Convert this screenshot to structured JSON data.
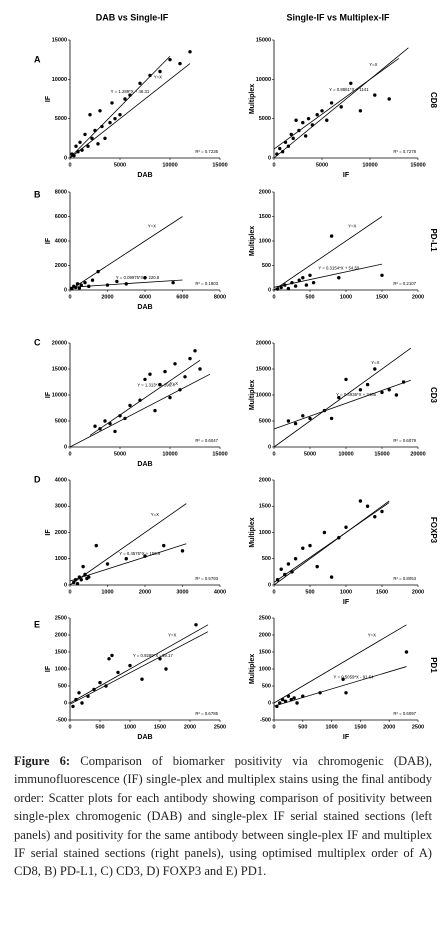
{
  "figure": {
    "columns": [
      "DAB vs Single-IF",
      "Single-IF vs Multiplex-IF"
    ],
    "rows": [
      {
        "letter": "A",
        "marker": "CD8"
      },
      {
        "letter": "B",
        "marker": "PD-L1"
      },
      {
        "letter": "C",
        "marker": "CD3"
      },
      {
        "letter": "D",
        "marker": "FOXP3"
      },
      {
        "letter": "E",
        "marker": "PD1"
      }
    ]
  },
  "caption": {
    "label": "Figure 6:",
    "text": "Comparison of biomarker positivity via chromogenic (DAB), immunofluorescence (IF) single-plex and multiplex stains using the final antibody order: Scatter plots for each antibody showing comparison of positivity between single-plex chromogenic (DAB) and single-plex IF serial stained sections (left panels) and positivity for the same antibody between single-plex IF and multiplex IF serial stained sections (right panels), using optimised multiplex order of A) CD8, B) PD-L1, C) CD3, D) FOXP3 and E) PD1."
  },
  "chart_data": [
    {
      "type": "scatter",
      "xlabel": "DAB",
      "ylabel": "IF",
      "color": "#000000",
      "xlim": [
        0,
        15000
      ],
      "ylim": [
        0,
        15000
      ],
      "xticks": [
        0,
        5000,
        10000,
        15000
      ],
      "yticks": [
        0,
        5000,
        10000,
        15000
      ],
      "x": [
        200,
        400,
        600,
        800,
        1000,
        1200,
        1500,
        1800,
        2000,
        2200,
        2500,
        2800,
        3000,
        3200,
        3500,
        4000,
        4200,
        4500,
        5000,
        5500,
        6000,
        7000,
        8000,
        9000,
        10000,
        11000,
        12000
      ],
      "values": [
        500,
        300,
        1500,
        800,
        2000,
        1000,
        3000,
        1500,
        5500,
        2500,
        3500,
        1800,
        6000,
        4000,
        2500,
        4500,
        7000,
        5000,
        5500,
        7500,
        8000,
        9500,
        10500,
        11000,
        12500,
        12000,
        13500
      ],
      "lines": [
        {
          "label": "Y=X",
          "x": [
            0,
            12000
          ],
          "values": [
            0,
            12000
          ]
        },
        {
          "label": "Y = 1.289*X + 46.31",
          "x": [
            0,
            10000
          ],
          "values": [
            46.31,
            12936
          ]
        }
      ],
      "r2": "R² = 0.7235"
    },
    {
      "type": "scatter",
      "xlabel": "IF",
      "ylabel": "Multiplex",
      "color": "#000000",
      "xlim": [
        0,
        15000
      ],
      "ylim": [
        0,
        15000
      ],
      "xticks": [
        0,
        5000,
        10000,
        15000
      ],
      "yticks": [
        0,
        5000,
        10000,
        15000
      ],
      "x": [
        300,
        600,
        900,
        1200,
        1500,
        1800,
        2000,
        2300,
        2600,
        3000,
        3300,
        3600,
        4000,
        4500,
        5000,
        5500,
        6000,
        7000,
        8000,
        9000,
        10500,
        12000
      ],
      "values": [
        500,
        1200,
        800,
        2000,
        1500,
        3000,
        2500,
        4800,
        3500,
        4500,
        2800,
        5000,
        4200,
        5500,
        6000,
        4800,
        7000,
        6500,
        9500,
        6000,
        8000,
        7500
      ],
      "lines": [
        {
          "label": "Y=X",
          "x": [
            0,
            14000
          ],
          "values": [
            0,
            14000
          ]
        },
        {
          "label": "Y = 0.8861*X + 1141",
          "x": [
            0,
            13000
          ],
          "values": [
            1141,
            12660
          ]
        }
      ],
      "r2": "R² = 0.7278"
    },
    {
      "type": "scatter",
      "xlabel": "DAB",
      "ylabel": "IF",
      "color": "#000000",
      "xlim": [
        0,
        8000
      ],
      "ylim": [
        0,
        8000
      ],
      "xticks": [
        0,
        2000,
        4000,
        6000,
        8000
      ],
      "yticks": [
        0,
        2000,
        4000,
        6000,
        8000
      ],
      "x": [
        100,
        200,
        300,
        400,
        500,
        600,
        800,
        1000,
        1200,
        1500,
        2000,
        2500,
        3000,
        4000,
        5500
      ],
      "values": [
        100,
        300,
        200,
        500,
        150,
        400,
        600,
        300,
        800,
        1500,
        400,
        700,
        500,
        1000,
        600
      ],
      "lines": [
        {
          "label": "Y=X",
          "x": [
            0,
            6000
          ],
          "values": [
            0,
            6000
          ]
        },
        {
          "label": "Y = 0.09975*X + 220.8",
          "x": [
            0,
            6000
          ],
          "values": [
            220.8,
            819.3
          ]
        }
      ],
      "r2": "R² = 0.1803"
    },
    {
      "type": "scatter",
      "ylabel": "Multiplex",
      "color": "#000000",
      "xlim": [
        0,
        2000
      ],
      "ylim": [
        0,
        2000
      ],
      "xticks": [
        0,
        500,
        1000,
        1500,
        2000
      ],
      "yticks": [
        0,
        500,
        1000,
        1500,
        2000
      ],
      "x": [
        50,
        100,
        150,
        200,
        250,
        300,
        350,
        400,
        450,
        500,
        550,
        800,
        900,
        1500
      ],
      "values": [
        20,
        50,
        100,
        30,
        150,
        80,
        200,
        250,
        100,
        300,
        150,
        1100,
        250,
        300
      ],
      "lines": [
        {
          "label": "Y=X",
          "x": [
            0,
            1500
          ],
          "values": [
            0,
            1500
          ]
        },
        {
          "label": "Y = 0.3154*X + 54.59",
          "x": [
            0,
            1500
          ],
          "values": [
            54.59,
            527.7
          ]
        }
      ],
      "r2": "R² = 0.2107"
    },
    {
      "type": "scatter",
      "xlabel": "DAB",
      "ylabel": "IF",
      "color": "#000000",
      "xlim": [
        0,
        15000
      ],
      "ylim": [
        0,
        20000
      ],
      "xticks": [
        0,
        5000,
        10000,
        15000
      ],
      "yticks": [
        0,
        5000,
        10000,
        15000,
        20000
      ],
      "x": [
        2500,
        3000,
        3500,
        4000,
        4500,
        5000,
        5500,
        6000,
        7000,
        7500,
        8000,
        8500,
        9000,
        9500,
        10000,
        10500,
        11000,
        11500,
        12000,
        12500,
        13000
      ],
      "values": [
        4000,
        3500,
        5000,
        4500,
        3000,
        6000,
        5500,
        8000,
        9000,
        13000,
        14000,
        7000,
        12000,
        14500,
        9500,
        16000,
        11000,
        13500,
        17000,
        18500,
        15000
      ],
      "lines": [
        {
          "label": "Y=X",
          "x": [
            0,
            14000
          ],
          "values": [
            0,
            14000
          ]
        },
        {
          "label": "Y = 1.313*X - 396.4",
          "x": [
            2000,
            13000
          ],
          "values": [
            2229.6,
            16672.6
          ]
        }
      ],
      "r2": "R² = 0.6047"
    },
    {
      "type": "scatter",
      "ylabel": "Multiplex",
      "color": "#000000",
      "xlim": [
        0,
        20000
      ],
      "ylim": [
        0,
        20000
      ],
      "xticks": [
        0,
        5000,
        10000,
        15000,
        20000
      ],
      "yticks": [
        0,
        5000,
        10000,
        15000,
        20000
      ],
      "x": [
        2000,
        3000,
        4000,
        5000,
        7000,
        8000,
        9000,
        10000,
        12000,
        13000,
        14000,
        15000,
        16000,
        17000,
        18000
      ],
      "values": [
        5000,
        4500,
        6000,
        5500,
        7000,
        5500,
        9500,
        13000,
        11000,
        12000,
        15000,
        10500,
        11000,
        10000,
        12500
      ],
      "lines": [
        {
          "label": "Y=X",
          "x": [
            0,
            19000
          ],
          "values": [
            0,
            19000
          ]
        },
        {
          "label": "Y = 0.4936*X + 3466",
          "x": [
            0,
            19000
          ],
          "values": [
            3466,
            12844
          ]
        }
      ],
      "r2": "R² = 0.6079"
    },
    {
      "type": "scatter",
      "ylabel": "IF",
      "color": "#000000",
      "xlim": [
        0,
        4000
      ],
      "ylim": [
        0,
        4000
      ],
      "xticks": [
        0,
        1000,
        2000,
        3000,
        4000
      ],
      "yticks": [
        0,
        1000,
        2000,
        3000,
        4000
      ],
      "x": [
        100,
        150,
        200,
        250,
        300,
        350,
        400,
        450,
        500,
        700,
        1000,
        1500,
        2000,
        2500,
        3000
      ],
      "values": [
        100,
        200,
        50,
        300,
        200,
        700,
        400,
        250,
        300,
        1500,
        800,
        1000,
        1100,
        1500,
        1300
      ],
      "lines": [
        {
          "label": "Y=X",
          "x": [
            0,
            3100
          ],
          "values": [
            0,
            3100
          ]
        },
        {
          "label": "Y = 0.4576*X + 150.9",
          "x": [
            0,
            3100
          ],
          "values": [
            150.9,
            1569.5
          ]
        }
      ],
      "r2": "R² = 0.5793"
    },
    {
      "type": "scatter",
      "xlabel": "IF",
      "ylabel": "Multiplex",
      "color": "#000000",
      "xlim": [
        0,
        2000
      ],
      "ylim": [
        0,
        2000
      ],
      "xticks": [
        0,
        500,
        1000,
        1500,
        2000
      ],
      "yticks": [
        0,
        500,
        1000,
        1500,
        2000
      ],
      "x": [
        50,
        100,
        150,
        200,
        250,
        300,
        400,
        500,
        600,
        700,
        800,
        900,
        1000,
        1200,
        1300,
        1400,
        1500
      ],
      "values": [
        100,
        300,
        200,
        400,
        250,
        500,
        700,
        750,
        350,
        1000,
        150,
        900,
        1100,
        1600,
        1500,
        1300,
        1400
      ],
      "lines": [
        {
          "x": [
            0,
            1600
          ],
          "values": [
            0,
            1600
          ]
        },
        {
          "x": [
            0,
            1600
          ],
          "values": [
            50,
            1570
          ]
        }
      ],
      "r2": "R² = 0.8053"
    },
    {
      "type": "scatter",
      "xlabel": "DAB",
      "ylabel": "IF",
      "color": "#000000",
      "xlim": [
        0,
        2500
      ],
      "ylim": [
        -500,
        2500
      ],
      "xticks": [
        0,
        500,
        1000,
        1500,
        2000,
        2500
      ],
      "yticks": [
        -500,
        0,
        500,
        1000,
        1500,
        2000,
        2500
      ],
      "x": [
        50,
        100,
        150,
        200,
        300,
        400,
        500,
        600,
        650,
        700,
        800,
        1000,
        1200,
        1500,
        1600,
        2100
      ],
      "values": [
        -100,
        100,
        300,
        0,
        200,
        400,
        600,
        500,
        1300,
        1400,
        900,
        1100,
        700,
        1300,
        1000,
        2300
      ],
      "lines": [
        {
          "label": "Y=X",
          "x": [
            0,
            2300
          ],
          "values": [
            0,
            2300
          ]
        },
        {
          "label": "Y = 0.9289*X - 39.17",
          "x": [
            0,
            2300
          ],
          "values": [
            -39.17,
            2097.3
          ]
        }
      ],
      "r2": "R² = 0.6785"
    },
    {
      "type": "scatter",
      "xlabel": "IF",
      "ylabel": "Multiplex",
      "color": "#000000",
      "xlim": [
        0,
        2500
      ],
      "ylim": [
        -500,
        2500
      ],
      "xticks": [
        0,
        500,
        1000,
        1500,
        2000,
        2500
      ],
      "yticks": [
        -500,
        0,
        500,
        1000,
        1500,
        2000,
        2500
      ],
      "x": [
        50,
        100,
        150,
        200,
        250,
        300,
        350,
        400,
        500,
        800,
        1200,
        1250,
        2300
      ],
      "values": [
        -100,
        0,
        100,
        50,
        200,
        100,
        150,
        0,
        200,
        300,
        700,
        300,
        1500
      ],
      "lines": [
        {
          "label": "Y=X",
          "x": [
            0,
            2300
          ],
          "values": [
            0,
            2300
          ]
        },
        {
          "label": "Y = 0.5059*X - 91.64",
          "x": [
            0,
            2300
          ],
          "values": [
            -91.64,
            1071.9
          ]
        }
      ],
      "r2": "R² = 0.6097"
    }
  ]
}
